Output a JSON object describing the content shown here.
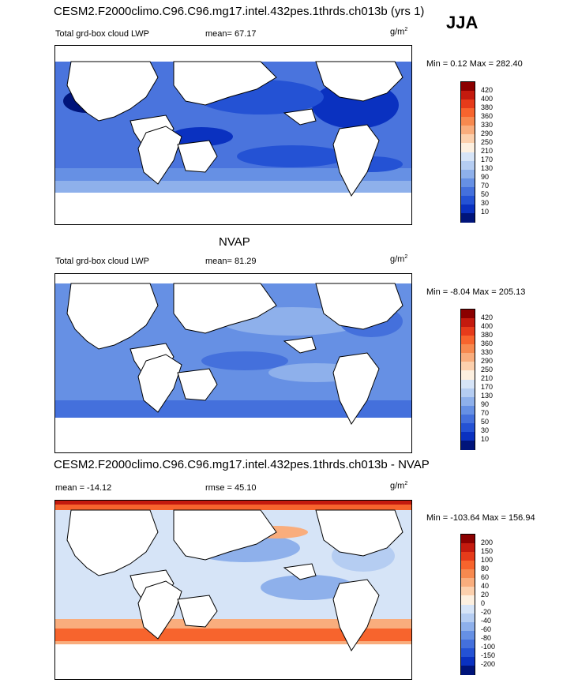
{
  "season": "JJA",
  "panels": [
    {
      "title": "CESM2.F2000climo.C96.C96.mg17.intel.432pes.1thrds.ch013b (yrs 1)",
      "left_label": "Total grd-box cloud LWP",
      "center_label": "mean=  67.17",
      "units": "g/m",
      "units_sup": "2",
      "minmax": "Min =   0.12 Max = 282.40",
      "levels": [
        "420",
        "400",
        "380",
        "360",
        "330",
        "290",
        "250",
        "210",
        "170",
        "130",
        "90",
        "70",
        "50",
        "30",
        "10"
      ],
      "colors": [
        "#8b0000",
        "#c41a0e",
        "#e63b1a",
        "#f7642d",
        "#f7894f",
        "#f9ad7d",
        "#fcd0ad",
        "#fdf0e0",
        "#d6e4f7",
        "#b5cdf2",
        "#8eb0eb",
        "#6690e4",
        "#4470dc",
        "#2452d4",
        "#0a31c0",
        "#00147a"
      ]
    },
    {
      "title": "NVAP",
      "left_label": "Total grd-box cloud LWP",
      "center_label": "mean=  81.29",
      "units": "g/m",
      "units_sup": "2",
      "minmax": "Min =  -8.04 Max = 205.13",
      "levels": [
        "420",
        "400",
        "380",
        "360",
        "330",
        "290",
        "250",
        "210",
        "170",
        "130",
        "90",
        "70",
        "50",
        "30",
        "10"
      ],
      "colors": [
        "#8b0000",
        "#c41a0e",
        "#e63b1a",
        "#f7642d",
        "#f7894f",
        "#f9ad7d",
        "#fcd0ad",
        "#fdf0e0",
        "#d6e4f7",
        "#b5cdf2",
        "#8eb0eb",
        "#6690e4",
        "#4470dc",
        "#2452d4",
        "#0a31c0",
        "#00147a"
      ]
    },
    {
      "title": "CESM2.F2000climo.C96.C96.mg17.intel.432pes.1thrds.ch013b - NVAP",
      "left_label": "mean = -14.12",
      "center_label": "rmse =  45.10",
      "units": "g/m",
      "units_sup": "2",
      "minmax": "Min = -103.64 Max = 156.94",
      "levels": [
        "200",
        "150",
        "100",
        "80",
        "60",
        "40",
        "20",
        "0",
        "-20",
        "-40",
        "-60",
        "-80",
        "-100",
        "-150",
        "-200"
      ],
      "colors": [
        "#8b0000",
        "#c41a0e",
        "#e63b1a",
        "#f7642d",
        "#f7894f",
        "#f9ad7d",
        "#fcd0ad",
        "#fdf0e0",
        "#d6e4f7",
        "#b5cdf2",
        "#8eb0eb",
        "#6690e4",
        "#4470dc",
        "#2452d4",
        "#0a31c0",
        "#00147a"
      ]
    }
  ],
  "chart_data": [
    {
      "type": "heatmap",
      "title": "CESM2.F2000climo.C96.C96.mg17.intel.432pes.1thrds.ch013b (yrs 1)",
      "field": "Total grd-box cloud LWP",
      "units": "g/m2",
      "mean": 67.17,
      "min": 0.12,
      "max": 282.4,
      "contour_levels": [
        10,
        30,
        50,
        70,
        90,
        130,
        170,
        210,
        250,
        290,
        330,
        360,
        380,
        400,
        420
      ]
    },
    {
      "type": "heatmap",
      "title": "NVAP",
      "field": "Total grd-box cloud LWP",
      "units": "g/m2",
      "mean": 81.29,
      "min": -8.04,
      "max": 205.13,
      "contour_levels": [
        10,
        30,
        50,
        70,
        90,
        130,
        170,
        210,
        250,
        290,
        330,
        360,
        380,
        400,
        420
      ]
    },
    {
      "type": "heatmap",
      "title": "CESM2.F2000climo.C96.C96.mg17.intel.432pes.1thrds.ch013b - NVAP",
      "units": "g/m2",
      "mean": -14.12,
      "rmse": 45.1,
      "min": -103.64,
      "max": 156.94,
      "contour_levels": [
        -200,
        -150,
        -100,
        -80,
        -60,
        -40,
        -20,
        0,
        20,
        40,
        60,
        80,
        100,
        150,
        200
      ]
    }
  ]
}
